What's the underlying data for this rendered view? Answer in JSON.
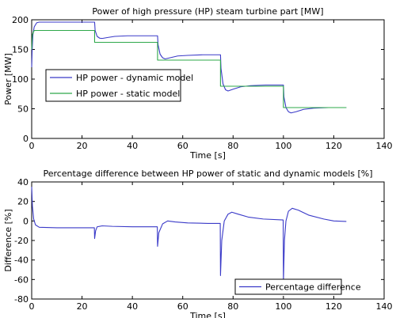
{
  "chart_data": [
    {
      "type": "line",
      "title": "Power of high pressure (HP) steam turbine part [MW]",
      "xlabel": "Time [s]",
      "ylabel": "Power [MW]",
      "xlim": [
        0,
        140
      ],
      "ylim": [
        0,
        200
      ],
      "xticks": [
        0,
        20,
        40,
        60,
        80,
        100,
        120,
        140
      ],
      "yticks": [
        0,
        50,
        100,
        150,
        200
      ],
      "grid": false,
      "legend_position": "center-left",
      "series": [
        {
          "name": "HP power - dynamic model",
          "color": "#3a3ac8",
          "points": [
            [
              0,
              120
            ],
            [
              0.2,
              150
            ],
            [
              0.5,
              175
            ],
            [
              1,
              188
            ],
            [
              2,
              195
            ],
            [
              3,
              196
            ],
            [
              5,
              196
            ],
            [
              10,
              196
            ],
            [
              20,
              196
            ],
            [
              25,
              196
            ],
            [
              25.2,
              182
            ],
            [
              26,
              172
            ],
            [
              27,
              169
            ],
            [
              28,
              168.5
            ],
            [
              30,
              170
            ],
            [
              33,
              172
            ],
            [
              38,
              173
            ],
            [
              44,
              173
            ],
            [
              50,
              173
            ],
            [
              50.2,
              158
            ],
            [
              51,
              142
            ],
            [
              52,
              136
            ],
            [
              53,
              134
            ],
            [
              55,
              136
            ],
            [
              58,
              139
            ],
            [
              62,
              140
            ],
            [
              68,
              141
            ],
            [
              75,
              141
            ],
            [
              75.2,
              118
            ],
            [
              76,
              92
            ],
            [
              77,
              82
            ],
            [
              78,
              80
            ],
            [
              80,
              83
            ],
            [
              83,
              87
            ],
            [
              87,
              89
            ],
            [
              93,
              90
            ],
            [
              100,
              90
            ],
            [
              100.2,
              70
            ],
            [
              101,
              52
            ],
            [
              102,
              45
            ],
            [
              103,
              43
            ],
            [
              105,
              45
            ],
            [
              108,
              49
            ],
            [
              112,
              51
            ],
            [
              118,
              52
            ],
            [
              125,
              52
            ]
          ]
        },
        {
          "name": "HP power - static model",
          "color": "#2ea84a",
          "points": [
            [
              0,
              150
            ],
            [
              0.3,
              175
            ],
            [
              1,
              182
            ],
            [
              25,
              182
            ],
            [
              25,
              162
            ],
            [
              50,
              162
            ],
            [
              50,
              132
            ],
            [
              75,
              132
            ],
            [
              75,
              88
            ],
            [
              100,
              88
            ],
            [
              100,
              52
            ],
            [
              125,
              52
            ]
          ]
        }
      ]
    },
    {
      "type": "line",
      "title": "Percentage difference between HP power of static and dynamic models [%]",
      "xlabel": "Time [s]",
      "ylabel": "Difference [%]",
      "xlim": [
        0,
        140
      ],
      "ylim": [
        -80,
        40
      ],
      "xticks": [
        0,
        20,
        40,
        60,
        80,
        100,
        120,
        140
      ],
      "yticks": [
        -80,
        -60,
        -40,
        -20,
        0,
        20,
        40
      ],
      "grid": false,
      "legend_position": "bottom-right",
      "series": [
        {
          "name": "Percentage difference",
          "color": "#3a3ac8",
          "points": [
            [
              0,
              35
            ],
            [
              0.3,
              15
            ],
            [
              0.8,
              2
            ],
            [
              1.5,
              -4
            ],
            [
              3,
              -6.5
            ],
            [
              10,
              -7
            ],
            [
              24.9,
              -7
            ],
            [
              25,
              -18
            ],
            [
              25.4,
              -10
            ],
            [
              26,
              -6
            ],
            [
              28,
              -5
            ],
            [
              32,
              -5.5
            ],
            [
              40,
              -6
            ],
            [
              49.9,
              -6
            ],
            [
              50,
              -26
            ],
            [
              50.5,
              -12
            ],
            [
              52,
              -3
            ],
            [
              54,
              0
            ],
            [
              57,
              -1
            ],
            [
              62,
              -2
            ],
            [
              70,
              -2.5
            ],
            [
              74.9,
              -2.5
            ],
            [
              75,
              -56
            ],
            [
              75.5,
              -20
            ],
            [
              76.5,
              0
            ],
            [
              78,
              7
            ],
            [
              79.5,
              9
            ],
            [
              82,
              7
            ],
            [
              86,
              4
            ],
            [
              92,
              2
            ],
            [
              99.9,
              1
            ],
            [
              100,
              -62
            ],
            [
              100.4,
              -20
            ],
            [
              101,
              0
            ],
            [
              102,
              10
            ],
            [
              103.5,
              13
            ],
            [
              106,
              11
            ],
            [
              110,
              6
            ],
            [
              116,
              2
            ],
            [
              120,
              0
            ],
            [
              125,
              -0.5
            ]
          ]
        }
      ]
    }
  ]
}
